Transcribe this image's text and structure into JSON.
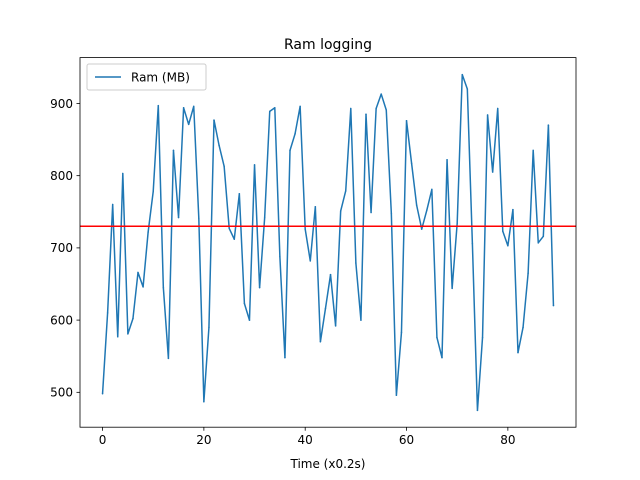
{
  "chart_data": {
    "type": "line",
    "title": "Ram logging",
    "xlabel": "Time (x0.2s)",
    "ylabel": "",
    "xlim": [
      -4.45,
      93.45
    ],
    "ylim": [
      451.7,
      963.5
    ],
    "xticks": [
      0,
      20,
      40,
      60,
      80
    ],
    "yticks": [
      500,
      600,
      700,
      800,
      900
    ],
    "legend": {
      "position": "top-left",
      "entries": [
        "Ram (MB)"
      ]
    },
    "grid": false,
    "series": [
      {
        "name": "Ram (MB)",
        "color": "#1f77b4",
        "x": [
          0,
          1,
          2,
          3,
          4,
          5,
          6,
          7,
          8,
          9,
          10,
          11,
          12,
          13,
          14,
          15,
          16,
          17,
          18,
          19,
          20,
          21,
          22,
          23,
          24,
          25,
          26,
          27,
          28,
          29,
          30,
          31,
          32,
          33,
          34,
          35,
          36,
          37,
          38,
          39,
          40,
          41,
          42,
          43,
          44,
          45,
          46,
          47,
          48,
          49,
          50,
          51,
          52,
          53,
          54,
          55,
          56,
          57,
          58,
          59,
          60,
          61,
          62,
          63,
          64,
          65,
          66,
          67,
          68,
          69,
          70,
          71,
          72,
          73,
          74,
          75,
          76,
          77,
          78,
          79,
          80,
          81,
          82,
          83,
          84,
          85,
          86,
          87,
          88,
          89
        ],
        "y": [
          498,
          610,
          760,
          577,
          803,
          581,
          602,
          666,
          646,
          722,
          778,
          897,
          645,
          547,
          835,
          742,
          894,
          871,
          896,
          741,
          487,
          590,
          877,
          842,
          813,
          727,
          712,
          775,
          623,
          600,
          815,
          645,
          742,
          889,
          894,
          688,
          548,
          835,
          858,
          896,
          726,
          682,
          757,
          570,
          616,
          663,
          592,
          751,
          779,
          893,
          679,
          600,
          885,
          749,
          893,
          913,
          891,
          748,
          496,
          583,
          876,
          817,
          759,
          726,
          752,
          781,
          576,
          548,
          822,
          644,
          734,
          940,
          920,
          706,
          475,
          576,
          884,
          805,
          893,
          723,
          703,
          753,
          555,
          590,
          665,
          835,
          707,
          716,
          870,
          620
        ]
      }
    ],
    "reference_lines": [
      {
        "orientation": "horizontal",
        "y": 730,
        "color": "#ff0000"
      }
    ]
  }
}
